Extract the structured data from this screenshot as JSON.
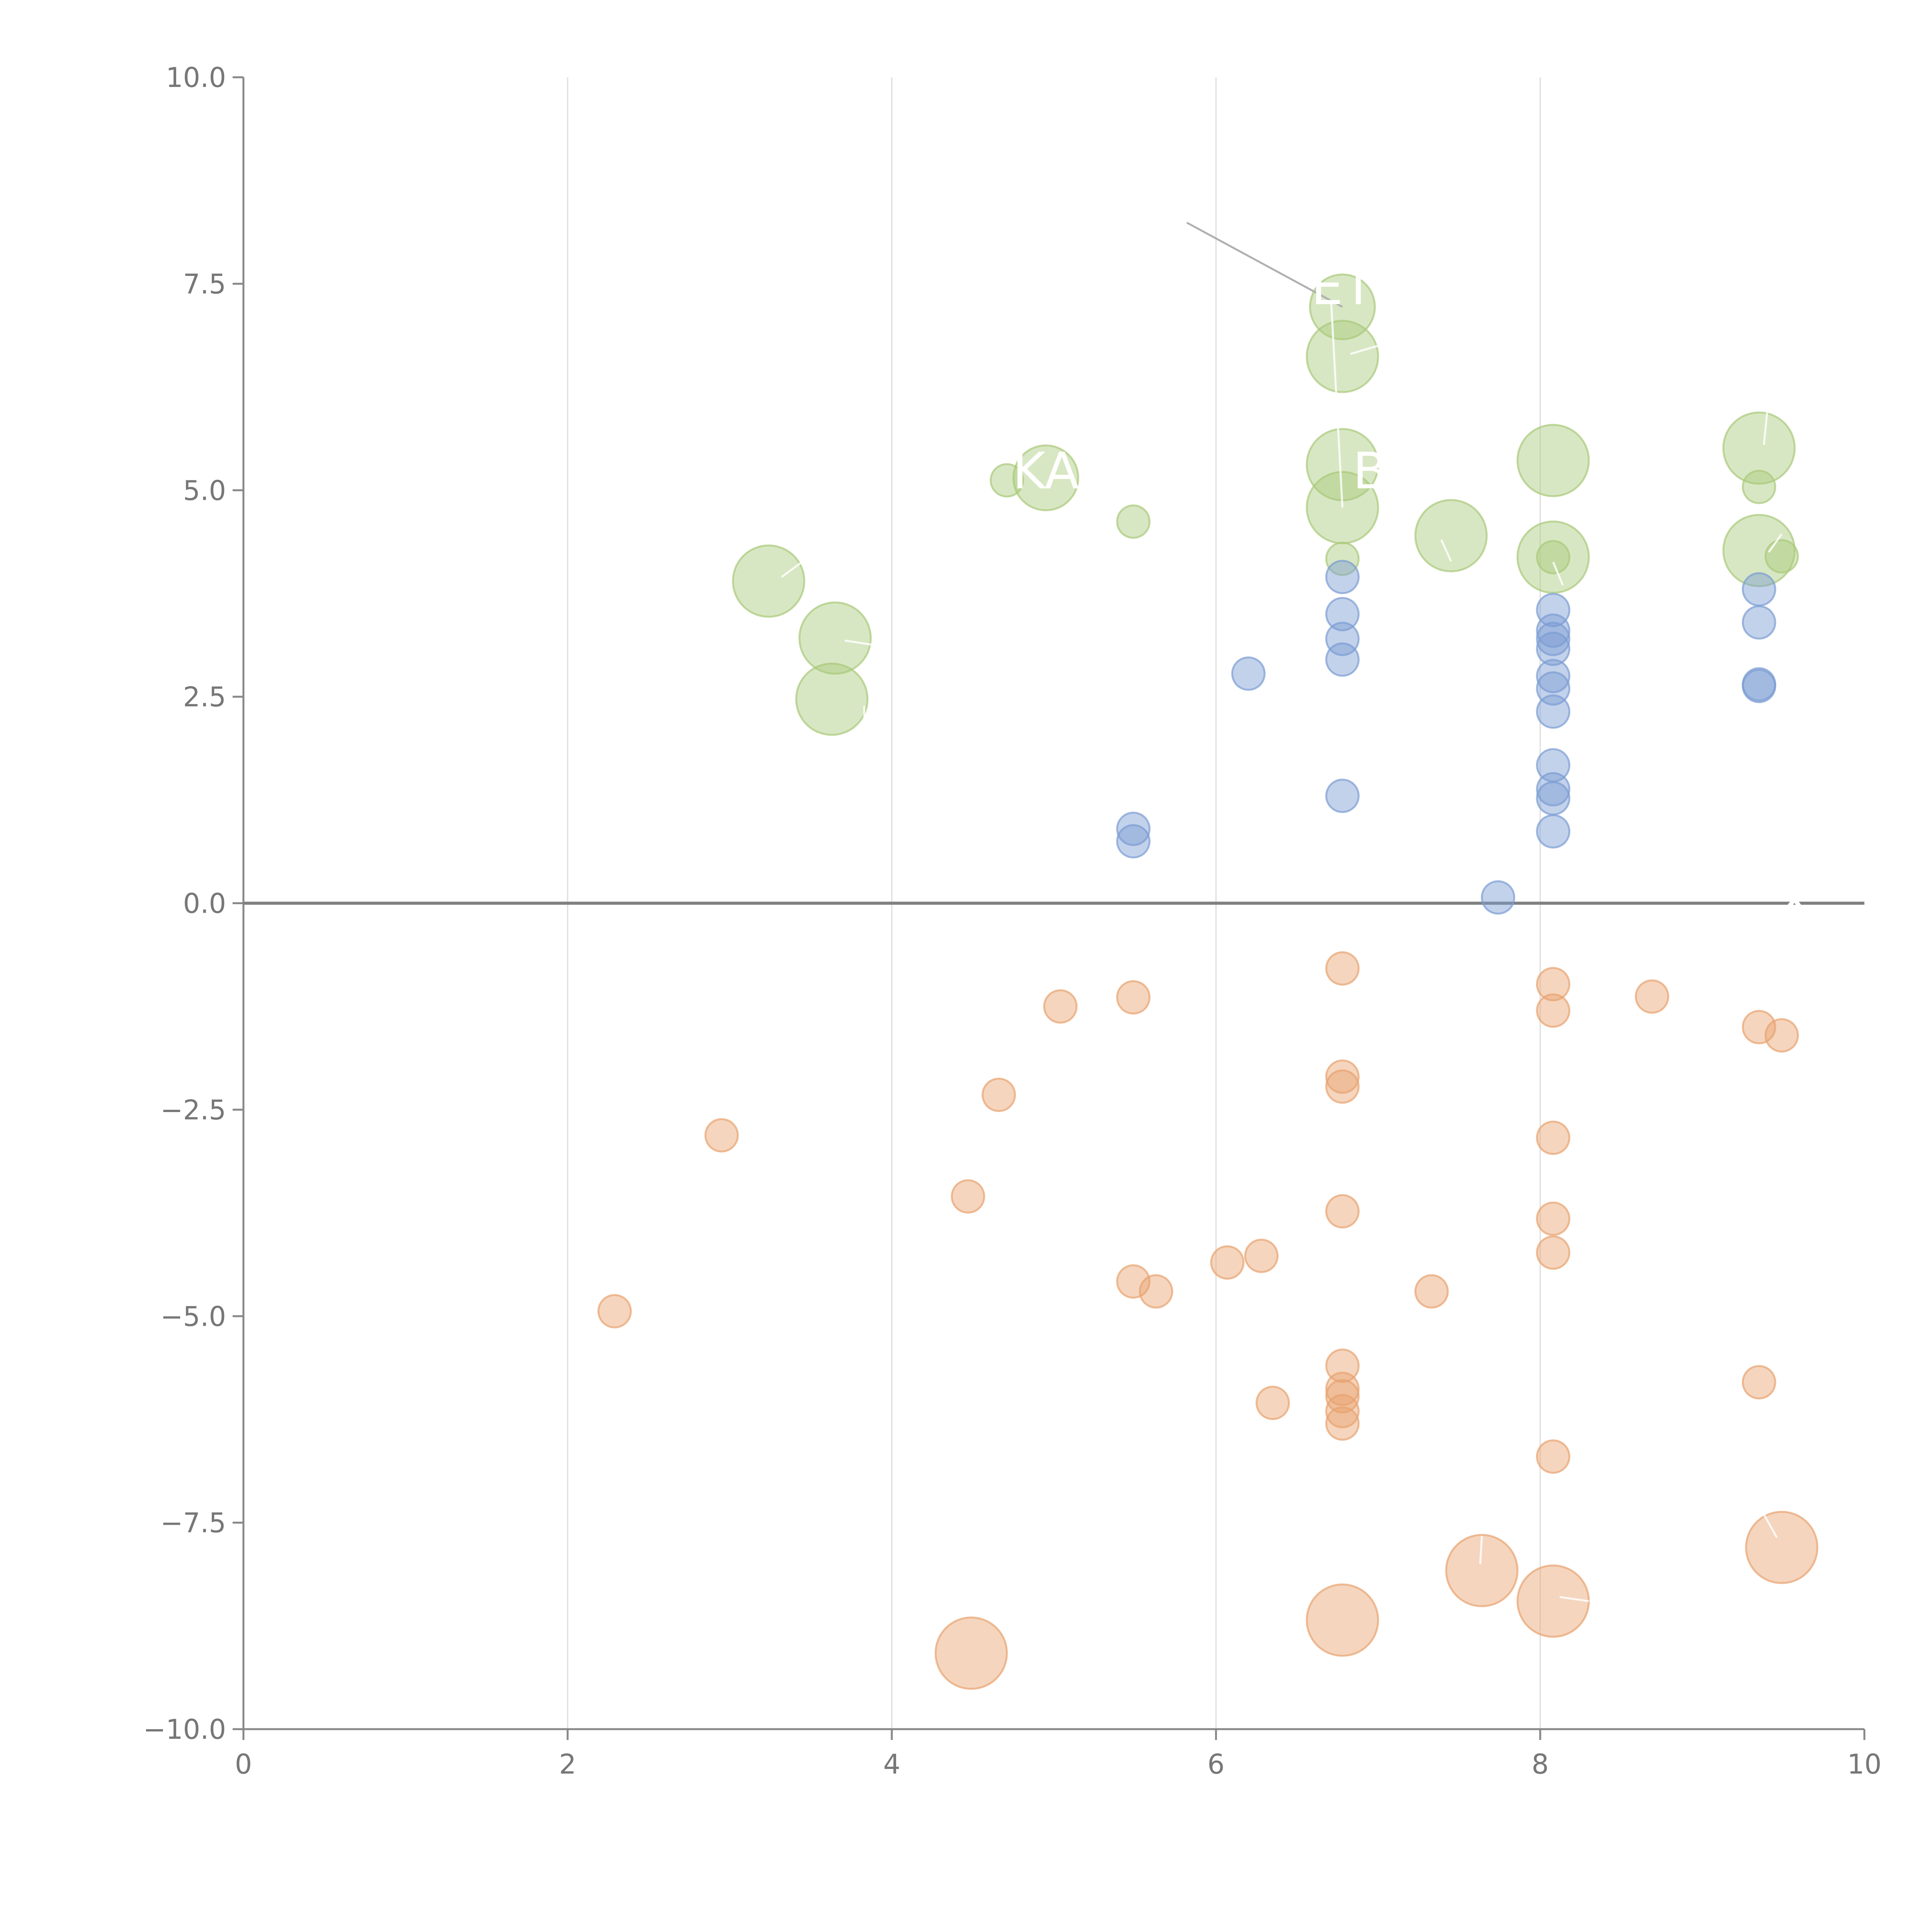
{
  "chart_data": {
    "type": "scatter",
    "title": "",
    "xlabel": "",
    "ylabel": "",
    "xlim": [
      0,
      10
    ],
    "ylim": [
      -10,
      10
    ],
    "x_ticks": [
      "0",
      "2",
      "4",
      "6",
      "8",
      "10"
    ],
    "y_ticks": [
      "10.0",
      "7.5",
      "5.0",
      "2.5",
      "0.0",
      "−2.5",
      "−5.0",
      "−7.5",
      "−10.0"
    ],
    "x_tick_values": [
      0,
      2,
      4,
      6,
      8,
      10
    ],
    "y_tick_values": [
      10,
      7.5,
      5,
      2.5,
      0,
      -2.5,
      -5,
      -7.5,
      -10
    ],
    "grid": "vertical",
    "zero_line": true,
    "series": [
      {
        "color": "#a9c97a",
        "points": [
          {
            "x": 6.78,
            "y": 7.22,
            "r": 0.2
          },
          {
            "x": 6.78,
            "y": 6.62,
            "r": 0.22
          },
          {
            "x": 6.78,
            "y": 5.31,
            "r": 0.22
          },
          {
            "x": 6.78,
            "y": 4.79,
            "r": 0.22
          },
          {
            "x": 6.78,
            "y": 4.17,
            "r": 0.1
          },
          {
            "x": 8.08,
            "y": 5.36,
            "r": 0.22
          },
          {
            "x": 8.08,
            "y": 4.19,
            "r": 0.22
          },
          {
            "x": 8.08,
            "y": 4.19,
            "r": 0.1
          },
          {
            "x": 9.35,
            "y": 5.51,
            "r": 0.22
          },
          {
            "x": 9.35,
            "y": 5.04,
            "r": 0.1
          },
          {
            "x": 9.35,
            "y": 4.27,
            "r": 0.22
          },
          {
            "x": 9.49,
            "y": 4.2,
            "r": 0.1
          },
          {
            "x": 7.45,
            "y": 4.45,
            "r": 0.22
          },
          {
            "x": 4.95,
            "y": 5.15,
            "r": 0.2
          },
          {
            "x": 4.71,
            "y": 5.12,
            "r": 0.1
          },
          {
            "x": 5.49,
            "y": 4.62,
            "r": 0.1
          },
          {
            "x": 3.24,
            "y": 3.9,
            "r": 0.22
          },
          {
            "x": 3.65,
            "y": 3.21,
            "r": 0.22
          },
          {
            "x": 3.63,
            "y": 2.47,
            "r": 0.22
          }
        ]
      },
      {
        "color": "#7a9cd3",
        "points": [
          {
            "x": 6.78,
            "y": 3.95,
            "r": 0.1
          },
          {
            "x": 6.78,
            "y": 3.5,
            "r": 0.1
          },
          {
            "x": 6.78,
            "y": 3.2,
            "r": 0.1
          },
          {
            "x": 6.78,
            "y": 2.95,
            "r": 0.1
          },
          {
            "x": 6.78,
            "y": 1.3,
            "r": 0.1
          },
          {
            "x": 6.2,
            "y": 2.78,
            "r": 0.1
          },
          {
            "x": 5.49,
            "y": 0.9,
            "r": 0.1
          },
          {
            "x": 5.49,
            "y": 0.75,
            "r": 0.1
          },
          {
            "x": 7.74,
            "y": 0.07,
            "r": 0.1
          },
          {
            "x": 8.08,
            "y": 3.55,
            "r": 0.1
          },
          {
            "x": 8.08,
            "y": 3.3,
            "r": 0.1
          },
          {
            "x": 8.08,
            "y": 3.2,
            "r": 0.1
          },
          {
            "x": 8.08,
            "y": 3.08,
            "r": 0.1
          },
          {
            "x": 8.08,
            "y": 2.75,
            "r": 0.1
          },
          {
            "x": 8.08,
            "y": 2.6,
            "r": 0.1
          },
          {
            "x": 8.08,
            "y": 2.32,
            "r": 0.1
          },
          {
            "x": 8.08,
            "y": 1.67,
            "r": 0.1
          },
          {
            "x": 8.08,
            "y": 1.38,
            "r": 0.1
          },
          {
            "x": 8.08,
            "y": 1.27,
            "r": 0.1
          },
          {
            "x": 8.08,
            "y": 0.87,
            "r": 0.1
          },
          {
            "x": 9.35,
            "y": 3.8,
            "r": 0.1
          },
          {
            "x": 9.35,
            "y": 3.4,
            "r": 0.1
          },
          {
            "x": 9.35,
            "y": 2.65,
            "r": 0.1
          },
          {
            "x": 9.35,
            "y": 2.63,
            "r": 0.1
          }
        ]
      },
      {
        "color": "#e8a26f",
        "points": [
          {
            "x": 6.78,
            "y": -0.79,
            "r": 0.1
          },
          {
            "x": 6.78,
            "y": -2.1,
            "r": 0.1
          },
          {
            "x": 6.78,
            "y": -2.22,
            "r": 0.1
          },
          {
            "x": 6.78,
            "y": -3.73,
            "r": 0.1
          },
          {
            "x": 6.78,
            "y": -5.6,
            "r": 0.1
          },
          {
            "x": 6.78,
            "y": -5.88,
            "r": 0.1
          },
          {
            "x": 6.78,
            "y": -5.97,
            "r": 0.1
          },
          {
            "x": 6.78,
            "y": -6.15,
            "r": 0.1
          },
          {
            "x": 6.78,
            "y": -6.3,
            "r": 0.1
          },
          {
            "x": 6.78,
            "y": -8.68,
            "r": 0.22
          },
          {
            "x": 8.08,
            "y": -0.98,
            "r": 0.1
          },
          {
            "x": 8.08,
            "y": -1.3,
            "r": 0.1
          },
          {
            "x": 8.08,
            "y": -2.84,
            "r": 0.1
          },
          {
            "x": 8.08,
            "y": -3.82,
            "r": 0.1
          },
          {
            "x": 8.08,
            "y": -4.23,
            "r": 0.1
          },
          {
            "x": 8.08,
            "y": -6.7,
            "r": 0.1
          },
          {
            "x": 8.08,
            "y": -8.45,
            "r": 0.22
          },
          {
            "x": 8.69,
            "y": -1.13,
            "r": 0.1
          },
          {
            "x": 9.35,
            "y": -1.5,
            "r": 0.1
          },
          {
            "x": 9.49,
            "y": -1.6,
            "r": 0.1
          },
          {
            "x": 9.35,
            "y": -5.8,
            "r": 0.1
          },
          {
            "x": 9.49,
            "y": -7.8,
            "r": 0.22
          },
          {
            "x": 7.64,
            "y": -8.08,
            "r": 0.22
          },
          {
            "x": 7.33,
            "y": -4.7,
            "r": 0.1
          },
          {
            "x": 6.07,
            "y": -4.35,
            "r": 0.1
          },
          {
            "x": 6.28,
            "y": -4.27,
            "r": 0.1
          },
          {
            "x": 6.35,
            "y": -6.05,
            "r": 0.1
          },
          {
            "x": 5.49,
            "y": -1.14,
            "r": 0.1
          },
          {
            "x": 5.04,
            "y": -1.25,
            "r": 0.1
          },
          {
            "x": 4.66,
            "y": -2.32,
            "r": 0.1
          },
          {
            "x": 4.47,
            "y": -3.55,
            "r": 0.1
          },
          {
            "x": 5.49,
            "y": -4.58,
            "r": 0.1
          },
          {
            "x": 5.63,
            "y": -4.7,
            "r": 0.1
          },
          {
            "x": 2.95,
            "y": -2.81,
            "r": 0.1
          },
          {
            "x": 2.29,
            "y": -4.94,
            "r": 0.1
          },
          {
            "x": 4.49,
            "y": -9.08,
            "r": 0.22
          }
        ]
      }
    ],
    "labels": [
      {
        "text": "KA",
        "x": 4.95,
        "y": 5.19
      },
      {
        "text": "ET",
        "x": 6.78,
        "y": 7.42
      },
      {
        "text": "B",
        "x": 6.95,
        "y": 5.19
      },
      {
        "text": "———— x",
        "x": 8.9,
        "y": 0.04
      }
    ],
    "leader_lines": [
      {
        "x1": 5.82,
        "y1": 8.24,
        "x2": 6.78,
        "y2": 7.22
      },
      {
        "x1": 6.71,
        "y1": 7.3,
        "x2": 6.78,
        "y2": 4.79
      },
      {
        "x1": 6.83,
        "y1": 6.65,
        "x2": 7.0,
        "y2": 6.75
      },
      {
        "x1": 3.32,
        "y1": 3.95,
        "x2": 3.48,
        "y2": 4.18
      },
      {
        "x1": 3.71,
        "y1": 3.18,
        "x2": 3.98,
        "y2": 3.1
      },
      {
        "x1": 3.83,
        "y1": 2.25,
        "x2": 3.83,
        "y2": 2.39
      },
      {
        "x1": 7.39,
        "y1": 4.4,
        "x2": 7.45,
        "y2": 4.14
      },
      {
        "x1": 8.08,
        "y1": 4.13,
        "x2": 8.14,
        "y2": 3.85
      },
      {
        "x1": 9.38,
        "y1": 5.55,
        "x2": 9.4,
        "y2": 5.94
      },
      {
        "x1": 9.41,
        "y1": 4.25,
        "x2": 9.49,
        "y2": 4.47
      },
      {
        "x1": 7.63,
        "y1": -8.0,
        "x2": 7.64,
        "y2": -7.66
      },
      {
        "x1": 8.12,
        "y1": -8.4,
        "x2": 8.3,
        "y2": -8.45
      },
      {
        "x1": 9.38,
        "y1": -7.4,
        "x2": 9.46,
        "y2": -7.68
      }
    ]
  }
}
